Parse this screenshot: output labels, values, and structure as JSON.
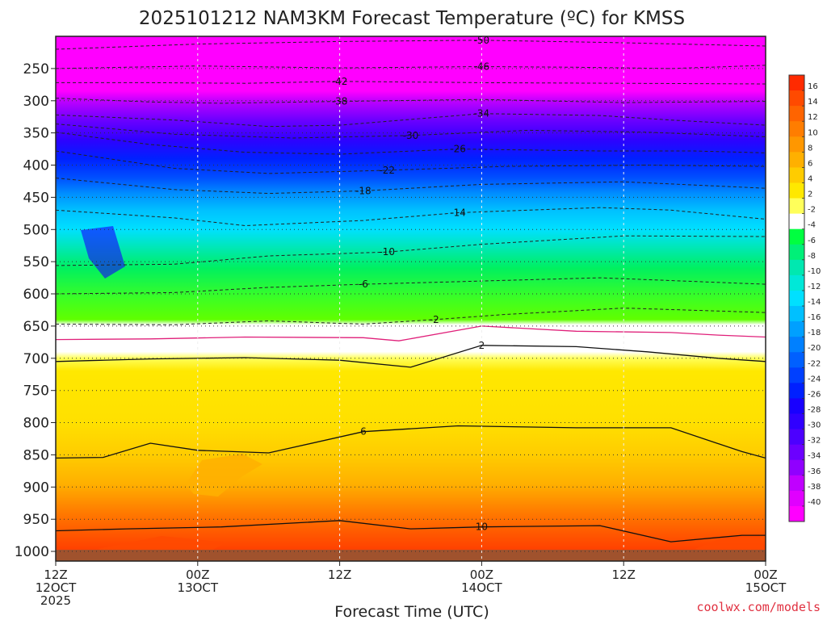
{
  "chart_data": {
    "type": "heatmap",
    "title": "2025101212 NAM3KM Forecast Temperature (ºC) for KMSS",
    "xlabel": "Forecast Time (UTC)",
    "credit": "coolwx.com/models",
    "x_ticks": [
      {
        "hour": 0,
        "line1": "12Z",
        "line2": "12OCT",
        "line3": "2025"
      },
      {
        "hour": 12,
        "line1": "00Z",
        "line2": "13OCT",
        "line3": ""
      },
      {
        "hour": 24,
        "line1": "12Z",
        "line2": "",
        "line3": ""
      },
      {
        "hour": 36,
        "line1": "00Z",
        "line2": "14OCT",
        "line3": ""
      },
      {
        "hour": 48,
        "line1": "12Z",
        "line2": "",
        "line3": ""
      },
      {
        "hour": 60,
        "line1": "00Z",
        "line2": "15OCT",
        "line3": ""
      }
    ],
    "x_range_hours": [
      0,
      60
    ],
    "y_axis": {
      "type": "pressure_hPa",
      "range": [
        200,
        1015
      ],
      "ticks": [
        250,
        300,
        350,
        400,
        450,
        500,
        550,
        600,
        650,
        700,
        750,
        800,
        850,
        900,
        950,
        1000
      ]
    },
    "colorbar": {
      "levels": [
        16,
        14,
        12,
        10,
        8,
        6,
        4,
        2,
        -2,
        -4,
        -6,
        -8,
        -10,
        -12,
        -14,
        -16,
        -18,
        -20,
        -22,
        -24,
        -26,
        -28,
        -30,
        -32,
        -34,
        -36,
        -38,
        -40
      ],
      "bands": [
        {
          "color": "#ff2a00"
        },
        {
          "color": "#ff4a00"
        },
        {
          "color": "#ff6400"
        },
        {
          "color": "#ff7d00"
        },
        {
          "color": "#ff9700"
        },
        {
          "color": "#ffb000"
        },
        {
          "color": "#ffcc00"
        },
        {
          "color": "#ffe800"
        },
        {
          "color": "#ffff5a"
        },
        {
          "color": "#ffffff"
        },
        {
          "color": "#00ff40"
        },
        {
          "color": "#00f078"
        },
        {
          "color": "#00e8b0"
        },
        {
          "color": "#00e8d8"
        },
        {
          "color": "#00e0ff"
        },
        {
          "color": "#00c0ff"
        },
        {
          "color": "#00a0ff"
        },
        {
          "color": "#0080ff"
        },
        {
          "color": "#0060ff"
        },
        {
          "color": "#0040ff"
        },
        {
          "color": "#0020ff"
        },
        {
          "color": "#1800ff"
        },
        {
          "color": "#3000ff"
        },
        {
          "color": "#4c00ff"
        },
        {
          "color": "#6c00ff"
        },
        {
          "color": "#9000ff"
        },
        {
          "color": "#c000ff"
        },
        {
          "color": "#e000ff"
        },
        {
          "color": "#ff00ff"
        }
      ]
    },
    "ground_color": "#a0522d",
    "freezing_line_color": "#e0207a",
    "dashed_isotherms": [
      {
        "label": "-50",
        "points": [
          [
            0,
            220
          ],
          [
            12,
            212
          ],
          [
            24,
            208
          ],
          [
            36,
            206
          ],
          [
            48,
            210
          ],
          [
            60,
            215
          ]
        ]
      },
      {
        "label": "-46",
        "points": [
          [
            0,
            250
          ],
          [
            6,
            248
          ],
          [
            12,
            246
          ],
          [
            24,
            249
          ],
          [
            36,
            247
          ],
          [
            44,
            248
          ],
          [
            52,
            250
          ],
          [
            60,
            245
          ]
        ]
      },
      {
        "label": "-42",
        "points": [
          [
            0,
            272
          ],
          [
            8,
            272
          ],
          [
            16,
            273
          ],
          [
            24,
            270
          ],
          [
            36,
            272
          ],
          [
            48,
            273
          ],
          [
            60,
            274
          ]
        ]
      },
      {
        "label": "-38",
        "points": [
          [
            0,
            296
          ],
          [
            8,
            302
          ],
          [
            14,
            304
          ],
          [
            24,
            301
          ],
          [
            36,
            298
          ],
          [
            48,
            303
          ],
          [
            60,
            301
          ]
        ]
      },
      {
        "label": "-34",
        "points": [
          [
            0,
            322
          ],
          [
            10,
            330
          ],
          [
            18,
            340
          ],
          [
            24,
            338
          ],
          [
            36,
            320
          ],
          [
            46,
            323
          ],
          [
            52,
            330
          ],
          [
            60,
            338
          ]
        ]
      },
      {
        "label": "-30",
        "points": [
          [
            0,
            336
          ],
          [
            10,
            352
          ],
          [
            20,
            358
          ],
          [
            30,
            354
          ],
          [
            40,
            346
          ],
          [
            50,
            349
          ],
          [
            60,
            356
          ]
        ]
      },
      {
        "label": "-26",
        "points": [
          [
            0,
            349
          ],
          [
            8,
            368
          ],
          [
            16,
            380
          ],
          [
            24,
            383
          ],
          [
            34,
            375
          ],
          [
            46,
            378
          ],
          [
            54,
            378
          ],
          [
            60,
            381
          ]
        ]
      },
      {
        "label": "-22",
        "points": [
          [
            0,
            378
          ],
          [
            10,
            405
          ],
          [
            18,
            413
          ],
          [
            28,
            408
          ],
          [
            38,
            402
          ],
          [
            50,
            400
          ],
          [
            60,
            402
          ]
        ]
      },
      {
        "label": "-18",
        "points": [
          [
            0,
            420
          ],
          [
            10,
            438
          ],
          [
            18,
            444
          ],
          [
            26,
            440
          ],
          [
            36,
            430
          ],
          [
            48,
            426
          ],
          [
            60,
            436
          ]
        ]
      },
      {
        "label": "-14",
        "points": [
          [
            0,
            470
          ],
          [
            10,
            482
          ],
          [
            16,
            494
          ],
          [
            26,
            486
          ],
          [
            34,
            474
          ],
          [
            46,
            466
          ],
          [
            52,
            470
          ],
          [
            60,
            484
          ]
        ]
      },
      {
        "label": "-10",
        "points": [
          [
            0,
            556
          ],
          [
            10,
            554
          ],
          [
            18,
            541
          ],
          [
            28,
            535
          ],
          [
            36,
            523
          ],
          [
            48,
            510
          ],
          [
            60,
            511
          ]
        ]
      },
      {
        "label": "-6",
        "points": [
          [
            0,
            600
          ],
          [
            10,
            598
          ],
          [
            18,
            590
          ],
          [
            26,
            585
          ],
          [
            36,
            580
          ],
          [
            46,
            575
          ],
          [
            60,
            585
          ]
        ]
      },
      {
        "label": "-2",
        "points": [
          [
            0,
            647
          ],
          [
            10,
            648
          ],
          [
            18,
            642
          ],
          [
            26,
            647
          ],
          [
            32,
            640
          ],
          [
            38,
            632
          ],
          [
            48,
            622
          ],
          [
            60,
            629
          ]
        ]
      }
    ],
    "freezing_line": [
      [
        0,
        671
      ],
      [
        8,
        670
      ],
      [
        16,
        667
      ],
      [
        26,
        668
      ],
      [
        29,
        673
      ],
      [
        36,
        650
      ],
      [
        44,
        658
      ],
      [
        52,
        660
      ],
      [
        56,
        664
      ],
      [
        60,
        667
      ]
    ],
    "solid_isotherms": [
      {
        "label": "2",
        "points": [
          [
            0,
            705
          ],
          [
            8,
            701
          ],
          [
            16,
            699
          ],
          [
            24,
            703
          ],
          [
            30,
            714
          ],
          [
            36,
            680
          ],
          [
            44,
            682
          ],
          [
            50,
            690
          ],
          [
            56,
            700
          ],
          [
            60,
            705
          ]
        ]
      },
      {
        "label": "6",
        "points": [
          [
            0,
            855
          ],
          [
            4,
            854
          ],
          [
            8,
            832
          ],
          [
            12,
            843
          ],
          [
            18,
            847
          ],
          [
            26,
            814
          ],
          [
            34,
            805
          ],
          [
            44,
            808
          ],
          [
            52,
            808
          ],
          [
            58,
            845
          ],
          [
            60,
            855
          ]
        ]
      },
      {
        "label": "10",
        "points": [
          [
            0,
            968
          ],
          [
            6,
            965
          ],
          [
            14,
            962
          ],
          [
            24,
            952
          ],
          [
            30,
            965
          ],
          [
            36,
            962
          ],
          [
            46,
            960
          ],
          [
            52,
            985
          ],
          [
            58,
            975
          ],
          [
            60,
            975
          ]
        ]
      }
    ]
  }
}
